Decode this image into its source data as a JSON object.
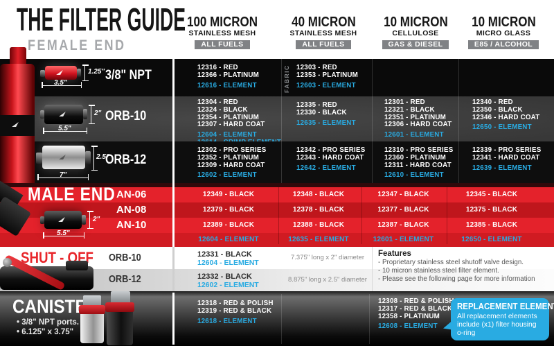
{
  "colors": {
    "accent_blue": "#29abe2",
    "brand_red": "#e4222b",
    "badge_gray": "#808285"
  },
  "header": {
    "title": "THE FILTER GUIDE",
    "subtitle": "FEMALE END",
    "columns": [
      {
        "micron": "100 MICRON",
        "media": "STAINLESS MESH",
        "badge": "ALL FUELS"
      },
      {
        "micron": "40 MICRON",
        "media": "STAINLESS MESH",
        "badge": "ALL FUELS"
      },
      {
        "micron": "10 MICRON",
        "media": "CELLULOSE",
        "badge": "GAS & DIESEL"
      },
      {
        "micron": "10 MICRON",
        "media": "MICRO GLASS",
        "badge": "E85 / ALCOHOL"
      }
    ]
  },
  "female": {
    "rows": [
      {
        "label": "3/8\" NPT",
        "dim_height": "1.25\"",
        "dim_length": "3.5\"",
        "cells": [
          {
            "codes": [
              "12316 - RED",
              "12366 - PLATINUM"
            ],
            "elements": [
              "12616 - ELEMENT"
            ]
          },
          {
            "note": "FABRIC",
            "codes": [
              "12303 - RED",
              "12353 - PLATINUM"
            ],
            "elements": [
              "12603 - ELEMENT"
            ]
          },
          {
            "codes": [],
            "elements": []
          },
          {
            "codes": [],
            "elements": []
          }
        ]
      },
      {
        "label": "ORB-10",
        "dim_height": "2\"",
        "dim_length": "5.5\"",
        "cells": [
          {
            "codes": [
              "12304 - RED",
              "12324 - BLACK",
              "12354 - PLATINUM",
              "12307 - HARD COAT"
            ],
            "elements": [
              "12604 - ELEMENT",
              "12614 - CRIMP ELEMENT"
            ]
          },
          {
            "codes": [
              "12335 - RED",
              "12330 - BLACK"
            ],
            "elements": [
              "12635 - ELEMENT"
            ]
          },
          {
            "codes": [
              "12301 - RED",
              "12321 - BLACK",
              "12351 - PLATINUM",
              "12306 - HARD COAT"
            ],
            "elements": [
              "12601 - ELEMENT"
            ]
          },
          {
            "codes": [
              "12340 - RED",
              "12350 - BLACK",
              "12346 - HARD COAT"
            ],
            "elements": [
              "12650 - ELEMENT"
            ]
          }
        ]
      },
      {
        "label": "ORB-12",
        "dim_height": "2.5\"",
        "dim_length": "7\"",
        "cells": [
          {
            "codes": [
              "12302 - PRO SERIES",
              "12352 - PLATINUM",
              "12309 - HARD COAT"
            ],
            "elements": [
              "12602 - ELEMENT"
            ]
          },
          {
            "codes": [
              "12342 - PRO SERIES",
              "12343 - HARD COAT"
            ],
            "elements": [
              "12642 - ELEMENT"
            ]
          },
          {
            "codes": [
              "12310 - PRO SERIES",
              "12360 - PLATINUM",
              "12311 - HARD COAT"
            ],
            "elements": [
              "12610 - ELEMENT"
            ]
          },
          {
            "codes": [
              "12339 - PRO SERIES",
              "12341 - HARD COAT"
            ],
            "elements": [
              "12639 - ELEMENT"
            ]
          }
        ]
      }
    ]
  },
  "male": {
    "label": "MALE END",
    "dim_height": "2\"",
    "dim_length": "5.5\"",
    "rows": [
      {
        "size": "AN-06",
        "cells": [
          "12349 - BLACK",
          "12348 - BLACK",
          "12347 - BLACK",
          "12345 - BLACK"
        ]
      },
      {
        "size": "AN-08",
        "cells": [
          "12379 - BLACK",
          "12378 - BLACK",
          "12377 - BLACK",
          "12375 - BLACK"
        ]
      },
      {
        "size": "AN-10",
        "cells": [
          "12389 - BLACK",
          "12388 - BLACK",
          "12387 - BLACK",
          "12385 - BLACK"
        ]
      }
    ],
    "element_row": [
      "12604 - ELEMENT",
      "12635 - ELEMENT",
      "12601 - ELEMENT",
      "12650 - ELEMENT"
    ]
  },
  "shutoff": {
    "label": "SHUT - OFF",
    "rows": [
      {
        "size": "ORB-10",
        "code": "12331 - BLACK",
        "element": "12604 - ELEMENT",
        "spec": "7.375\" long x 2\" diameter"
      },
      {
        "size": "ORB-12",
        "code": "12332 - BLACK",
        "element": "12602 - ELEMENT",
        "spec": "8.875\" long x 2.5\" diameter"
      }
    ],
    "features": {
      "title": "Features",
      "items": [
        "- Proprietary stainless steel shutoff valve design.",
        "- 10 micron stainless steel filter element.",
        "- Please see the following page for more information"
      ]
    }
  },
  "canister": {
    "label": "CANISTER",
    "bullets": [
      "• 3/8\" NPT ports.",
      "• 6.125\" x 3.75\""
    ],
    "cells": [
      {
        "codes": [
          "12318 - RED & POLISH",
          "12319 - RED & BLACK"
        ],
        "elements": [
          "12618 - ELEMENT"
        ]
      },
      {
        "codes": [
          "12308 - RED & POLISH",
          "12317 - RED & BLACK",
          "12358 - PLATINUM"
        ],
        "elements": [
          "12608 - ELEMENT"
        ]
      }
    ],
    "callout": {
      "title": "REPLACEMENT ELEMENTS",
      "body": "All replacement elements include (x1) filter housing o-ring"
    }
  }
}
